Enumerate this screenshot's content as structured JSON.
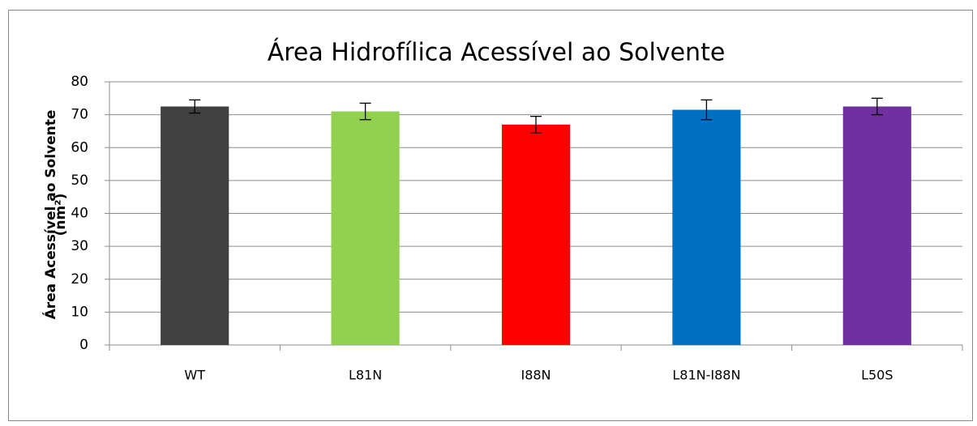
{
  "chart_data": {
    "type": "bar",
    "title": "Área Hidrofílica Acessível ao Solvente",
    "ylabel": [
      "Área Acessível ao Solvente",
      "(nm²)"
    ],
    "categories": [
      "WT",
      "L81N",
      "I88N",
      "L81N-I88N",
      "L50S"
    ],
    "values": [
      72.5,
      71,
      67,
      71.5,
      72.5
    ],
    "errors": [
      2,
      2.5,
      2.5,
      3,
      2.5
    ],
    "colors": [
      "#404040",
      "#92d050",
      "#ff0000",
      "#0070c0",
      "#7030a0"
    ],
    "ylim": [
      0,
      80
    ],
    "yticks": [
      0,
      10,
      20,
      30,
      40,
      50,
      60,
      70,
      80
    ],
    "grid": true
  }
}
